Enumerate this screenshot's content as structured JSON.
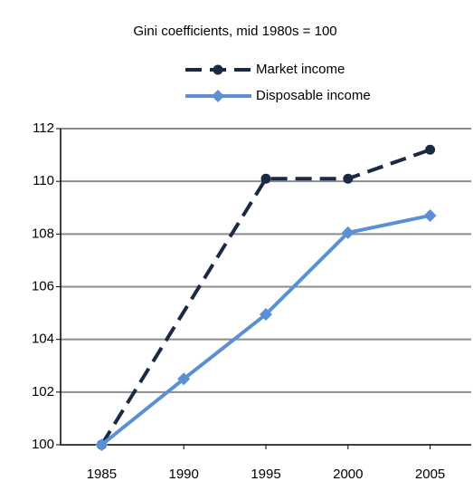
{
  "chart_data": {
    "type": "line",
    "title": "Gini coefficients, mid 1980s = 100",
    "series": [
      {
        "name": "Market income",
        "color": "#1b2a44",
        "dash": true,
        "marker": "circle",
        "x": [
          1985,
          1995,
          2000,
          2005
        ],
        "values": [
          100,
          110.1,
          110.1,
          111.2
        ]
      },
      {
        "name": "Disposable income",
        "color": "#5b8fd6",
        "dash": false,
        "marker": "diamond",
        "x": [
          1985,
          1990,
          1995,
          2000,
          2005
        ],
        "values": [
          100,
          102.5,
          104.95,
          108.05,
          108.7
        ]
      }
    ],
    "xlim": [
      1982.5,
      2007.5
    ],
    "xticks": [
      1985,
      1990,
      1995,
      2000,
      2005
    ],
    "ylim": [
      100,
      112
    ],
    "yticks": [
      100,
      102,
      104,
      106,
      108,
      110,
      112
    ],
    "grid": true
  }
}
